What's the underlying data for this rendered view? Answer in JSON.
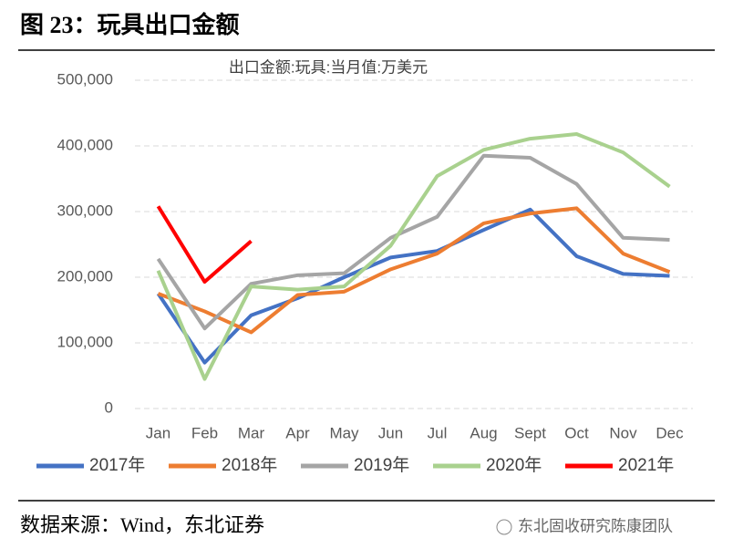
{
  "header": {
    "title": "图 23：玩具出口金额"
  },
  "chart_data": {
    "type": "line",
    "title": "出口金额:玩具:当月值:万美元",
    "categories": [
      "Jan",
      "Feb",
      "Mar",
      "Apr",
      "May",
      "Jun",
      "Jul",
      "Aug",
      "Sept",
      "Oct",
      "Nov",
      "Dec"
    ],
    "series": [
      {
        "name": "2017年",
        "color": "#4472c4",
        "values": [
          175000,
          70000,
          142000,
          168000,
          200000,
          230000,
          240000,
          272000,
          303000,
          232000,
          205000,
          202000
        ]
      },
      {
        "name": "2018年",
        "color": "#ed7d31",
        "values": [
          175000,
          148000,
          116000,
          173000,
          178000,
          212000,
          236000,
          282000,
          297000,
          305000,
          236000,
          208000
        ]
      },
      {
        "name": "2019年",
        "color": "#a5a5a5",
        "values": [
          228000,
          122000,
          190000,
          203000,
          206000,
          260000,
          292000,
          385000,
          382000,
          342000,
          260000,
          257000
        ]
      },
      {
        "name": "2020年",
        "color": "#a9d18e",
        "values": [
          210000,
          45000,
          186000,
          181000,
          186000,
          248000,
          354000,
          394000,
          411000,
          418000,
          390000,
          338000
        ]
      },
      {
        "name": "2021年",
        "color": "#ff0000",
        "values": [
          308000,
          193000,
          255000,
          null,
          null,
          null,
          null,
          null,
          null,
          null,
          null,
          null
        ]
      }
    ],
    "ylim": [
      0,
      500000
    ],
    "yticks": [
      0,
      {
        "value": 100000,
        "label": "100,000"
      },
      {
        "value": 200000,
        "label": "200,000"
      },
      {
        "value": 300000,
        "label": "300,000"
      },
      {
        "value": 400000,
        "label": "400,000"
      },
      {
        "value": 500000,
        "label": "500,000"
      }
    ],
    "grid": true,
    "legend": "bottom"
  },
  "footer": {
    "source": "数据来源：Wind，东北证券",
    "watermark": "东北固收研究陈康团队"
  }
}
